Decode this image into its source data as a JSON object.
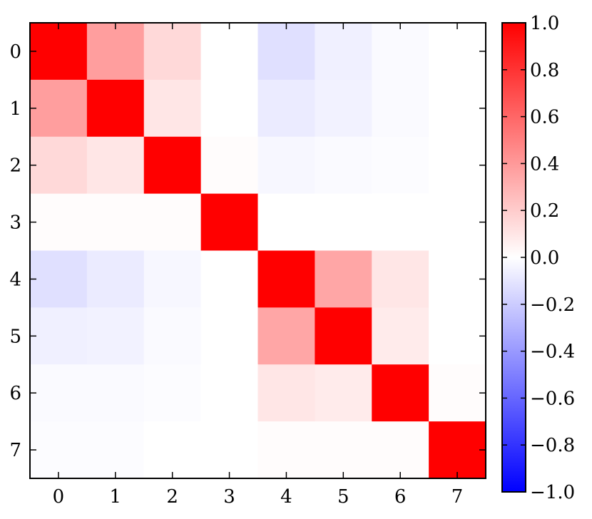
{
  "chart_data": {
    "type": "heatmap",
    "title": "",
    "xlabel": "",
    "ylabel": "",
    "x_categories": [
      "0",
      "1",
      "2",
      "3",
      "4",
      "5",
      "6",
      "7"
    ],
    "y_categories": [
      "0",
      "1",
      "2",
      "3",
      "4",
      "5",
      "6",
      "7"
    ],
    "values": [
      [
        1.0,
        0.38,
        0.15,
        0.0,
        -0.12,
        -0.06,
        -0.02,
        0.0
      ],
      [
        0.38,
        1.0,
        0.1,
        0.0,
        -0.08,
        -0.05,
        -0.02,
        0.0
      ],
      [
        0.15,
        0.1,
        1.0,
        0.01,
        -0.03,
        -0.02,
        -0.01,
        0.0
      ],
      [
        0.01,
        0.01,
        0.01,
        1.0,
        0.0,
        0.0,
        0.0,
        0.0
      ],
      [
        -0.12,
        -0.08,
        -0.03,
        0.0,
        1.0,
        0.35,
        0.1,
        0.0
      ],
      [
        -0.06,
        -0.05,
        -0.02,
        0.0,
        0.35,
        1.0,
        0.08,
        0.0
      ],
      [
        -0.02,
        -0.02,
        -0.01,
        0.0,
        0.1,
        0.08,
        1.0,
        0.01
      ],
      [
        -0.01,
        -0.01,
        0.0,
        0.0,
        0.01,
        0.01,
        0.01,
        1.0
      ]
    ],
    "colormap": [
      "#0000ff",
      "#ffffff",
      "#ff0000"
    ],
    "colorbar": {
      "range": [
        -1.0,
        1.0
      ],
      "ticks": [
        1.0,
        0.8,
        0.6,
        0.4,
        0.2,
        0.0,
        -0.2,
        -0.4,
        -0.6,
        -0.8,
        -1.0
      ],
      "tick_labels": [
        "1.0",
        "0.8",
        "0.6",
        "0.4",
        "0.2",
        "0.0",
        "−0.2",
        "−0.4",
        "−0.6",
        "−0.8",
        "−1.0"
      ]
    },
    "grid": false
  }
}
